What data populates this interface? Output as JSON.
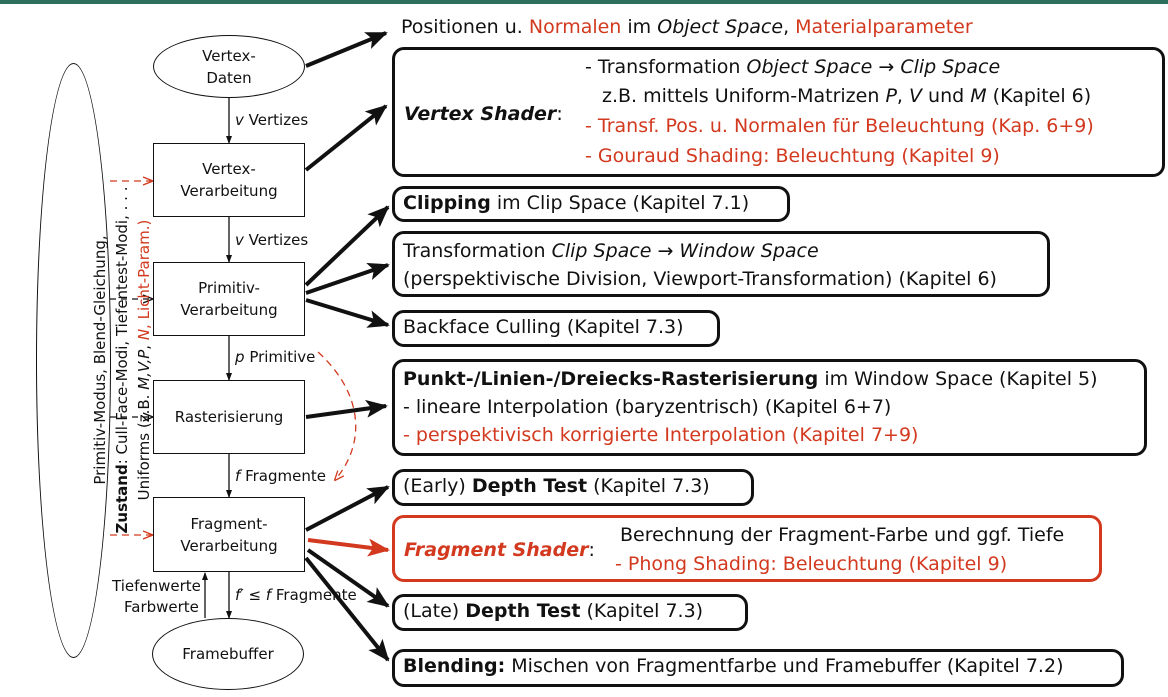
{
  "nodes": {
    "vertex_data": [
      "Vertex-",
      "Daten"
    ],
    "vertex_processing": [
      "Vertex-",
      "Verarbeitung"
    ],
    "primitive_processing": [
      "Primitiv-",
      "Verarbeitung"
    ],
    "rasterization": "Rasterisierung",
    "fragment_processing": [
      "Fragment-",
      "Verarbeitung"
    ],
    "framebuffer": "Framebuffer"
  },
  "edges": {
    "v1": "Vertizes",
    "v1_var": "v",
    "v2": "Vertizes",
    "v2_var": "v",
    "p": "Primitive",
    "p_var": "p",
    "f": "Fragmente",
    "f_var": "f",
    "f2": "Fragmente",
    "f2_var": "f′ ≤ f",
    "back1": "Tiefenwerte",
    "back2": "Farbwerte"
  },
  "state": {
    "line1": "Primitiv-Modus, Blend-Gleichung,",
    "line2_bold": "Zustand",
    "line2": ": Cull-Face-Modi, Tiefentest-Modi, . . .",
    "line3_a": "Uniforms (z.B. ",
    "line3_b": "M,V,P",
    "line3_c": ", ",
    "line3_d": "N",
    "line3_e": ", Licht-Param.)"
  },
  "top_text": {
    "a": "Positionen u. ",
    "b": "Normalen",
    "c": " im ",
    "d": "Object Space",
    "e": ", ",
    "f": "Materialparameter"
  },
  "vertex_shader": {
    "label": "Vertex Shader",
    "colon": ":",
    "l1a": "- Transformation ",
    "l1b": "Object Space",
    "l1c": " → ",
    "l1d": "Clip Space",
    "l2a": "z.B. mittels Uniform-Matrizen ",
    "l2b": "P",
    "l2c": ", ",
    "l2d": "V",
    "l2e": " und ",
    "l2f": "M",
    "l2g": " (Kapitel 6)",
    "l3": "- Transf. Pos. u. Normalen für Beleuchtung (Kap. 6+9)",
    "l4": "- Gouraud Shading: Beleuchtung (Kapitel 9)"
  },
  "clipping": {
    "bold": "Clipping",
    "rest": " im Clip Space (Kapitel 7.1)"
  },
  "transform": {
    "a": "Transformation ",
    "b": "Clip Space",
    "c": " → ",
    "d": "Window Space",
    "l2": "(perspektivische Division, Viewport-Transformation) (Kapitel 6)"
  },
  "backface": "Backface Culling (Kapitel 7.3)",
  "raster": {
    "bold": "Punkt-/Linien-/Dreiecks-Rasterisierung",
    "rest": " im Window Space (Kapitel 5)",
    "l2": "- lineare Interpolation (baryzentrisch) (Kapitel 6+7)",
    "l3": "- perspektivisch korrigierte Interpolation (Kapitel 7+9)"
  },
  "early_depth": {
    "a": "(Early) ",
    "b": "Depth Test",
    "c": " (Kapitel 7.3)"
  },
  "fragment_shader": {
    "label": "Fragment Shader",
    "colon": ":",
    "l1": "Berechnung der Fragment-Farbe und ggf. Tiefe",
    "l2": "- Phong Shading: Beleuchtung (Kapitel 9)"
  },
  "late_depth": {
    "a": "(Late) ",
    "b": "Depth Test",
    "c": " (Kapitel 7.3)"
  },
  "blending": {
    "bold": "Blending:",
    "rest": " Mischen von Fragmentfarbe und Framebuffer (Kapitel 7.2)"
  },
  "colors": {
    "accent_red": "#d2391f",
    "topbar": "#2f6f5e"
  }
}
